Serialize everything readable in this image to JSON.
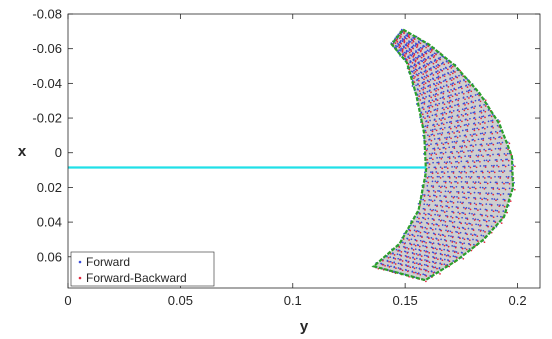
{
  "chart_data": {
    "type": "scatter",
    "title": "",
    "xlabel": "y",
    "ylabel": "x",
    "x_axis": {
      "range": [
        0,
        0.21
      ],
      "ticks": [
        0,
        0.05,
        0.1,
        0.15,
        0.2
      ],
      "tick_labels": [
        "0",
        "0.05",
        "0.1",
        "0.15",
        "0.2"
      ]
    },
    "y_axis": {
      "range": [
        -0.08,
        0.078
      ],
      "reversed": true,
      "ticks": [
        -0.08,
        -0.06,
        -0.04,
        -0.02,
        0,
        0.02,
        0.04,
        0.06
      ],
      "tick_labels": [
        "-0.08",
        "-0.06",
        "-0.04",
        "-0.02",
        "0",
        "0.02",
        "0.04",
        "0.06"
      ]
    },
    "grid": false,
    "legend_position": "bottom-left",
    "colors": {
      "forward": "#3a4bd8",
      "forward_backward": "#e0263c",
      "fill": "#cfcfcf",
      "boundary": "#2ca02c",
      "reference_line": "#20e0e8"
    },
    "region": {
      "outer_boundary": [
        [
          0.1491,
          -0.071
        ],
        [
          0.1605,
          -0.0625
        ],
        [
          0.172,
          -0.0505
        ],
        [
          0.183,
          -0.0345
        ],
        [
          0.192,
          -0.0165
        ],
        [
          0.1975,
          0.002
        ],
        [
          0.198,
          0.02
        ],
        [
          0.194,
          0.037
        ],
        [
          0.185,
          0.05
        ],
        [
          0.173,
          0.062
        ],
        [
          0.159,
          0.0735
        ]
      ],
      "inner_boundary": [
        [
          0.136,
          0.0655
        ],
        [
          0.1475,
          0.0525
        ],
        [
          0.156,
          0.033
        ],
        [
          0.1593,
          0.011
        ],
        [
          0.1585,
          -0.011
        ],
        [
          0.155,
          -0.033
        ],
        [
          0.1508,
          -0.052
        ],
        [
          0.144,
          -0.0625
        ]
      ]
    },
    "reference_line": {
      "x_from": 0,
      "x_to": 0.1593,
      "y": 0.0085
    },
    "series": [
      {
        "name": "Forward",
        "marker": "point",
        "color": "#3a4bd8"
      },
      {
        "name": "Forward-Backward",
        "marker": "point",
        "color": "#e0263c"
      }
    ]
  }
}
